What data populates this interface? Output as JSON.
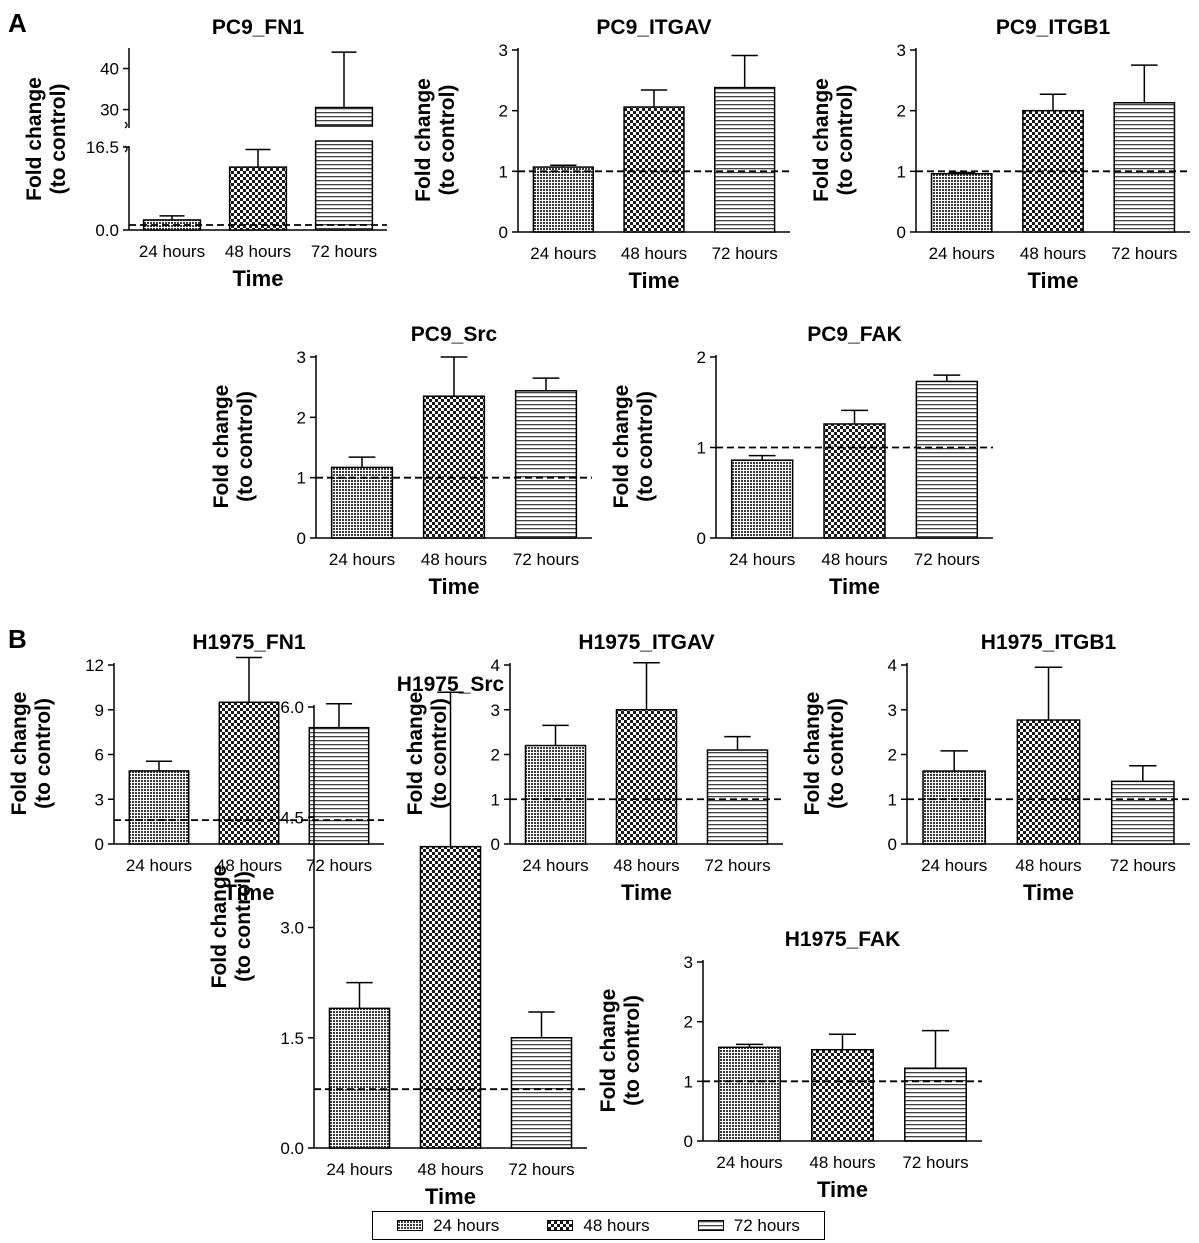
{
  "panel_labels": [
    "A",
    "B"
  ],
  "legend": {
    "items": [
      {
        "label": "24 hours",
        "pattern": "fine"
      },
      {
        "label": "48 hours",
        "pattern": "check"
      },
      {
        "label": "72 hours",
        "pattern": "hlines"
      }
    ]
  },
  "chart_data": [
    {
      "type": "bar",
      "title": "PC9_FN1",
      "xlabel": "Time",
      "ylabel": "Fold change (to control)",
      "categories": [
        "24 hours",
        "48 hours",
        "72 hours"
      ],
      "values": [
        2.0,
        12.5,
        30.5
      ],
      "errors": [
        0.8,
        3.5,
        13.5
      ],
      "baseline": 1.0,
      "ylim": [
        0,
        45
      ],
      "yticks": [
        "0.0",
        "16.5",
        "30",
        "40"
      ],
      "axis_break": [
        17.5,
        26
      ]
    },
    {
      "type": "bar",
      "title": "PC9_ITGAV",
      "xlabel": "Time",
      "ylabel": "Fold change (to control)",
      "categories": [
        "24 hours",
        "48 hours",
        "72 hours"
      ],
      "values": [
        1.07,
        2.06,
        2.38
      ],
      "errors": [
        0.03,
        0.28,
        0.53
      ],
      "baseline": 1.0,
      "ylim": [
        0,
        3
      ],
      "yticks": [
        "0",
        "1",
        "2",
        "3"
      ]
    },
    {
      "type": "bar",
      "title": "PC9_ITGB1",
      "xlabel": "Time",
      "ylabel": "Fold change (to control)",
      "categories": [
        "24 hours",
        "48 hours",
        "72 hours"
      ],
      "values": [
        0.96,
        2.0,
        2.13
      ],
      "errors": [
        0.02,
        0.27,
        0.62
      ],
      "baseline": 1.0,
      "ylim": [
        0,
        3
      ],
      "yticks": [
        "0",
        "1",
        "2",
        "3"
      ]
    },
    {
      "type": "bar",
      "title": "PC9_Src",
      "xlabel": "Time",
      "ylabel": "Fold change (to control)",
      "categories": [
        "24 hours",
        "48 hours",
        "72 hours"
      ],
      "values": [
        1.17,
        2.35,
        2.44
      ],
      "errors": [
        0.17,
        0.65,
        0.21
      ],
      "baseline": 1.0,
      "ylim": [
        0,
        3
      ],
      "yticks": [
        "0",
        "1",
        "2",
        "3"
      ]
    },
    {
      "type": "bar",
      "title": "PC9_FAK",
      "xlabel": "Time",
      "ylabel": "Fold change (to control)",
      "categories": [
        "24 hours",
        "48 hours",
        "72 hours"
      ],
      "values": [
        0.86,
        1.26,
        1.73
      ],
      "errors": [
        0.05,
        0.15,
        0.07
      ],
      "baseline": 1.0,
      "ylim": [
        0,
        2
      ],
      "yticks": [
        "0",
        "1",
        "2"
      ]
    },
    {
      "type": "bar",
      "title": "H1975_FN1",
      "xlabel": "Time",
      "ylabel": "Fold change (to control)",
      "categories": [
        "24 hours",
        "48 hours",
        "72 hours"
      ],
      "values": [
        4.9,
        9.5,
        7.8
      ],
      "errors": [
        0.65,
        3.0,
        1.6
      ],
      "baseline": 1.6,
      "ylim": [
        0,
        12.5
      ],
      "yticks": [
        "0",
        "3",
        "6",
        "9",
        "12"
      ]
    },
    {
      "type": "bar",
      "title": "H1975_ITGAV",
      "xlabel": "Time",
      "ylabel": "Fold change (to control)",
      "categories": [
        "24 hours",
        "48 hours",
        "72 hours"
      ],
      "values": [
        2.2,
        3.0,
        2.1
      ],
      "errors": [
        0.45,
        1.05,
        0.3
      ],
      "baseline": 1.0,
      "ylim": [
        0,
        4.5
      ],
      "yticks": [
        "0",
        "1",
        "2",
        "3",
        "4"
      ]
    },
    {
      "type": "bar",
      "title": "H1975_ITGB1",
      "xlabel": "Time",
      "ylabel": "Fold change (to control)",
      "categories": [
        "24 hours",
        "48 hours",
        "72 hours"
      ],
      "values": [
        1.63,
        2.77,
        1.4
      ],
      "errors": [
        0.45,
        1.18,
        0.35
      ],
      "baseline": 1.0,
      "ylim": [
        0,
        4
      ],
      "yticks": [
        "0",
        "1",
        "2",
        "3",
        "4"
      ]
    },
    {
      "type": "bar",
      "title": "H1975_Src",
      "xlabel": "Time",
      "ylabel": "Fold change (to control)",
      "categories": [
        "24 hours",
        "48 hours",
        "72 hours"
      ],
      "values": [
        1.9,
        4.1,
        1.5
      ],
      "errors": [
        0.35,
        2.1,
        0.35
      ],
      "baseline": 0.8,
      "ylim": [
        0,
        6.75
      ],
      "yticks": [
        "0.0",
        "1.5",
        "3.0",
        "4.5",
        "6.0"
      ]
    },
    {
      "type": "bar",
      "title": "H1975_FAK",
      "xlabel": "Time",
      "ylabel": "Fold change (to control)",
      "categories": [
        "24 hours",
        "48 hours",
        "72 hours"
      ],
      "values": [
        1.57,
        1.53,
        1.22
      ],
      "errors": [
        0.05,
        0.26,
        0.63
      ],
      "baseline": 1.0,
      "ylim": [
        0,
        3
      ],
      "yticks": [
        "0",
        "1",
        "2",
        "3"
      ]
    }
  ]
}
